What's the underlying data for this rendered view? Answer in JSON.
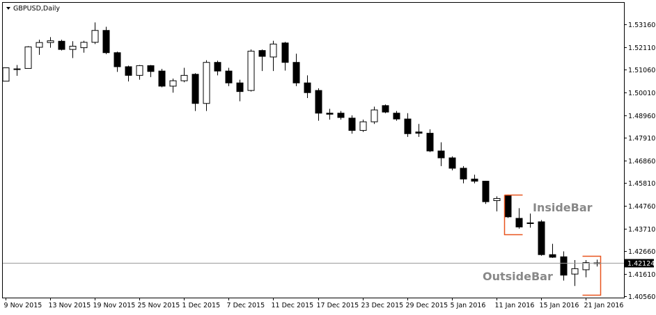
{
  "chart_data": {
    "type": "candlestick",
    "title": "GBPUSD,Daily",
    "current_price": "1.42124",
    "current_price_value": 1.42124,
    "ylim": [
      1.4051,
      1.5416
    ],
    "y_ticks": [
      "1.53160",
      "1.52110",
      "1.51060",
      "1.50010",
      "1.48960",
      "1.47910",
      "1.46860",
      "1.45810",
      "1.44760",
      "1.43710",
      "1.42660",
      "1.41610",
      "1.40560"
    ],
    "x_ticks": [
      {
        "label": "9 Nov 2015",
        "index": 0
      },
      {
        "label": "13 Nov 2015",
        "index": 4
      },
      {
        "label": "19 Nov 2015",
        "index": 8
      },
      {
        "label": "25 Nov 2015",
        "index": 12
      },
      {
        "label": "1 Dec 2015",
        "index": 16
      },
      {
        "label": "7 Dec 2015",
        "index": 20
      },
      {
        "label": "11 Dec 2015",
        "index": 24
      },
      {
        "label": "17 Dec 2015",
        "index": 28
      },
      {
        "label": "23 Dec 2015",
        "index": 32
      },
      {
        "label": "29 Dec 2015",
        "index": 36
      },
      {
        "label": "5 Jan 2016",
        "index": 40
      },
      {
        "label": "11 Jan 2016",
        "index": 44
      },
      {
        "label": "15 Jan 2016",
        "index": 48
      },
      {
        "label": "21 Jan 2016",
        "index": 52
      }
    ],
    "grid": false,
    "candles": [
      {
        "o": 1.5053,
        "h": 1.5115,
        "l": 1.5053,
        "c": 1.5115
      },
      {
        "o": 1.5108,
        "h": 1.5128,
        "l": 1.5078,
        "c": 1.511
      },
      {
        "o": 1.5112,
        "h": 1.5215,
        "l": 1.5112,
        "c": 1.5212
      },
      {
        "o": 1.521,
        "h": 1.5245,
        "l": 1.5175,
        "c": 1.5232
      },
      {
        "o": 1.5232,
        "h": 1.5257,
        "l": 1.5208,
        "c": 1.524
      },
      {
        "o": 1.5238,
        "h": 1.5245,
        "l": 1.5195,
        "c": 1.52
      },
      {
        "o": 1.52,
        "h": 1.5238,
        "l": 1.516,
        "c": 1.5215
      },
      {
        "o": 1.5208,
        "h": 1.524,
        "l": 1.5185,
        "c": 1.5233
      },
      {
        "o": 1.5233,
        "h": 1.5325,
        "l": 1.5225,
        "c": 1.5288
      },
      {
        "o": 1.5288,
        "h": 1.5305,
        "l": 1.5178,
        "c": 1.5185
      },
      {
        "o": 1.5185,
        "h": 1.519,
        "l": 1.5096,
        "c": 1.512
      },
      {
        "o": 1.512,
        "h": 1.5125,
        "l": 1.5052,
        "c": 1.508
      },
      {
        "o": 1.508,
        "h": 1.5128,
        "l": 1.506,
        "c": 1.5125
      },
      {
        "o": 1.5125,
        "h": 1.5128,
        "l": 1.5072,
        "c": 1.5098
      },
      {
        "o": 1.51,
        "h": 1.511,
        "l": 1.5025,
        "c": 1.503
      },
      {
        "o": 1.503,
        "h": 1.5065,
        "l": 1.5,
        "c": 1.5055
      },
      {
        "o": 1.5055,
        "h": 1.5115,
        "l": 1.5048,
        "c": 1.508
      },
      {
        "o": 1.5085,
        "h": 1.509,
        "l": 1.4915,
        "c": 1.495
      },
      {
        "o": 1.495,
        "h": 1.515,
        "l": 1.4915,
        "c": 1.514
      },
      {
        "o": 1.514,
        "h": 1.5148,
        "l": 1.508,
        "c": 1.51
      },
      {
        "o": 1.51,
        "h": 1.5115,
        "l": 1.503,
        "c": 1.5045
      },
      {
        "o": 1.5045,
        "h": 1.506,
        "l": 1.496,
        "c": 1.5005
      },
      {
        "o": 1.501,
        "h": 1.52,
        "l": 1.5005,
        "c": 1.5192
      },
      {
        "o": 1.5195,
        "h": 1.52,
        "l": 1.51,
        "c": 1.5168
      },
      {
        "o": 1.5165,
        "h": 1.524,
        "l": 1.51,
        "c": 1.5225
      },
      {
        "o": 1.523,
        "h": 1.5235,
        "l": 1.5102,
        "c": 1.514
      },
      {
        "o": 1.514,
        "h": 1.518,
        "l": 1.503,
        "c": 1.5045
      },
      {
        "o": 1.5045,
        "h": 1.508,
        "l": 1.4975,
        "c": 1.5
      },
      {
        "o": 1.501,
        "h": 1.502,
        "l": 1.487,
        "c": 1.4905
      },
      {
        "o": 1.4905,
        "h": 1.4925,
        "l": 1.4875,
        "c": 1.49
      },
      {
        "o": 1.4905,
        "h": 1.4915,
        "l": 1.4875,
        "c": 1.4885
      },
      {
        "o": 1.4882,
        "h": 1.4895,
        "l": 1.481,
        "c": 1.4825
      },
      {
        "o": 1.4825,
        "h": 1.4875,
        "l": 1.4818,
        "c": 1.4865
      },
      {
        "o": 1.4865,
        "h": 1.4935,
        "l": 1.4855,
        "c": 1.492
      },
      {
        "o": 1.494,
        "h": 1.4945,
        "l": 1.4905,
        "c": 1.491
      },
      {
        "o": 1.4905,
        "h": 1.4915,
        "l": 1.487,
        "c": 1.4878
      },
      {
        "o": 1.4878,
        "h": 1.4905,
        "l": 1.4795,
        "c": 1.481
      },
      {
        "o": 1.4818,
        "h": 1.4855,
        "l": 1.4795,
        "c": 1.4812
      },
      {
        "o": 1.4812,
        "h": 1.483,
        "l": 1.4725,
        "c": 1.473
      },
      {
        "o": 1.473,
        "h": 1.477,
        "l": 1.466,
        "c": 1.4698
      },
      {
        "o": 1.4698,
        "h": 1.4705,
        "l": 1.464,
        "c": 1.465
      },
      {
        "o": 1.465,
        "h": 1.466,
        "l": 1.458,
        "c": 1.46
      },
      {
        "o": 1.46,
        "h": 1.462,
        "l": 1.458,
        "c": 1.459
      },
      {
        "o": 1.459,
        "h": 1.4592,
        "l": 1.4485,
        "c": 1.4495
      },
      {
        "o": 1.45,
        "h": 1.452,
        "l": 1.445,
        "c": 1.451
      },
      {
        "o": 1.4525,
        "h": 1.4528,
        "l": 1.442,
        "c": 1.4425
      },
      {
        "o": 1.4418,
        "h": 1.4465,
        "l": 1.437,
        "c": 1.4378
      },
      {
        "o": 1.4395,
        "h": 1.444,
        "l": 1.4375,
        "c": 1.4397
      },
      {
        "o": 1.4402,
        "h": 1.441,
        "l": 1.4245,
        "c": 1.425
      },
      {
        "o": 1.425,
        "h": 1.43,
        "l": 1.4235,
        "c": 1.4238
      },
      {
        "o": 1.424,
        "h": 1.4265,
        "l": 1.413,
        "c": 1.4155
      },
      {
        "o": 1.416,
        "h": 1.4225,
        "l": 1.4105,
        "c": 1.4185
      },
      {
        "o": 1.418,
        "h": 1.4225,
        "l": 1.4145,
        "c": 1.4213
      },
      {
        "o": 1.421,
        "h": 1.4227,
        "l": 1.4195,
        "c": 1.4212
      }
    ],
    "annotations": [
      {
        "text": "InsideBar",
        "index": 44,
        "price": 1.447
      },
      {
        "text": "OutsideBar",
        "index": 48,
        "price": 1.415
      }
    ],
    "annotation_color": "#888888",
    "bracket_color": "#e8541e",
    "brackets": [
      {
        "type": "inside",
        "start_index": 45,
        "end_index": 46,
        "high": 1.4528,
        "low": 1.4345
      },
      {
        "type": "outside",
        "start_index": 52,
        "end_index": 53,
        "high": 1.4245,
        "low": 1.4065
      }
    ],
    "bull_color": "#ffffff",
    "bear_color": "#000000",
    "price_badge_color": "#000000"
  }
}
